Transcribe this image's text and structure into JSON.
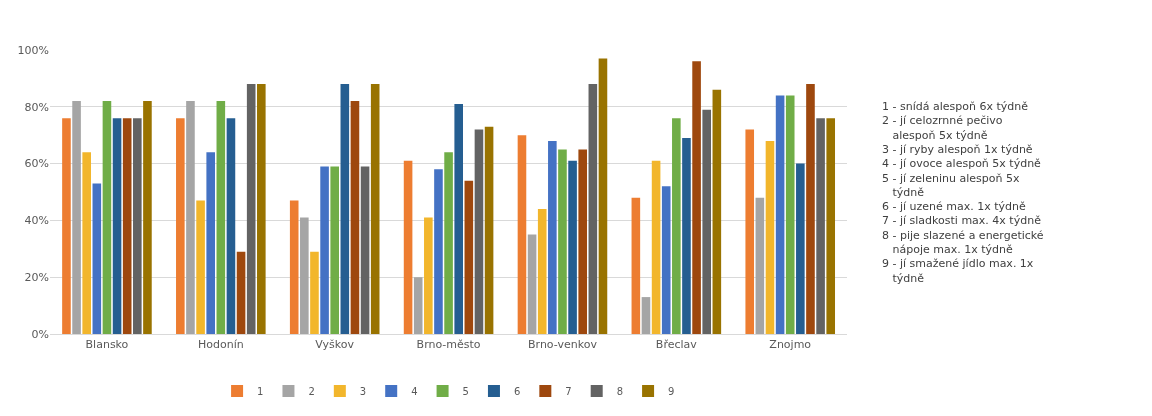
{
  "chart_data": {
    "type": "bar",
    "categories": [
      "Blansko",
      "Hodonín",
      "Vyškov",
      "Brno-město",
      "Brno-venkov",
      "Břeclav",
      "Znojmo"
    ],
    "series": [
      {
        "name": "1",
        "color": "#ed7d31",
        "values": [
          76,
          76,
          47,
          61,
          70,
          48,
          72
        ]
      },
      {
        "name": "2",
        "color": "#a5a5a5",
        "values": [
          82,
          82,
          41,
          20,
          35,
          13,
          48
        ]
      },
      {
        "name": "3",
        "color": "#f2b62c",
        "values": [
          64,
          47,
          29,
          41,
          44,
          61,
          68
        ]
      },
      {
        "name": "4",
        "color": "#4472c4",
        "values": [
          53,
          64,
          59,
          58,
          68,
          52,
          84
        ]
      },
      {
        "name": "5",
        "color": "#70ad47",
        "values": [
          82,
          82,
          59,
          64,
          65,
          76,
          84
        ]
      },
      {
        "name": "6",
        "color": "#255e91",
        "values": [
          76,
          76,
          88,
          81,
          61,
          69,
          60
        ]
      },
      {
        "name": "7",
        "color": "#9e480e",
        "values": [
          76,
          29,
          82,
          54,
          65,
          96,
          88
        ]
      },
      {
        "name": "8",
        "color": "#636363",
        "values": [
          76,
          88,
          59,
          72,
          88,
          79,
          76
        ]
      },
      {
        "name": "9",
        "color": "#997300",
        "values": [
          82,
          88,
          88,
          73,
          97,
          86,
          76
        ]
      }
    ],
    "ylim": [
      0,
      100
    ],
    "yticks": [
      {
        "value": 0,
        "label": "0%"
      },
      {
        "value": 20,
        "label": "20%"
      },
      {
        "value": 40,
        "label": "40%"
      },
      {
        "value": 60,
        "label": "60%"
      },
      {
        "value": 80,
        "label": "80%"
      },
      {
        "value": 100,
        "label": "100%"
      }
    ],
    "grid": "y",
    "legend": "bottom",
    "annotations": [
      "1 - snídá alespoň 6x týdně",
      "2 - jí celozrnné pečivo alespoň 5x týdně",
      "3 - jí ryby alespoň 1x týdně",
      "4 - jí ovoce alespoň 5x týdně",
      "5 - jí zeleninu alespoň 5x týdně",
      "6 - jí uzené max. 1x týdně",
      "7 - jí sladkosti max. 4x týdně",
      "8 - pije slazené a energetické nápoje max. 1x týdně",
      "9 - jí smažené jídlo max. 1x týdně"
    ]
  }
}
